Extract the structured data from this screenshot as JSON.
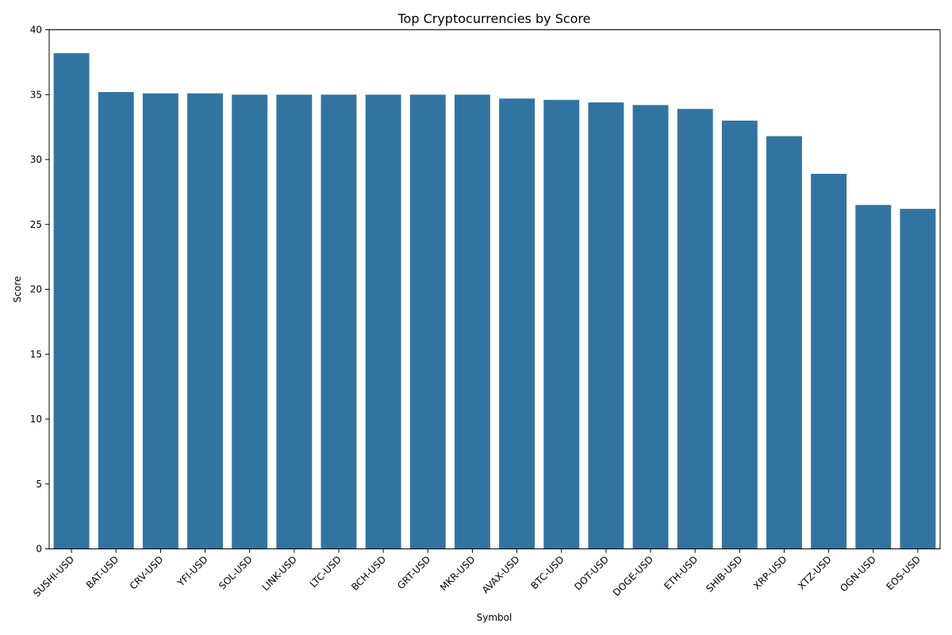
{
  "chart_data": {
    "type": "bar",
    "title": "Top Cryptocurrencies by Score",
    "xlabel": "Symbol",
    "ylabel": "Score",
    "ylim": [
      0,
      40
    ],
    "yticks": [
      0,
      5,
      10,
      15,
      20,
      25,
      30,
      35,
      40
    ],
    "grid": false,
    "legend": "none",
    "bar_color": "#3274a1",
    "categories": [
      "SUSHI-USD",
      "BAT-USD",
      "CRV-USD",
      "YFI-USD",
      "SOL-USD",
      "LINK-USD",
      "LTC-USD",
      "BCH-USD",
      "GRT-USD",
      "MKR-USD",
      "AVAX-USD",
      "BTC-USD",
      "DOT-USD",
      "DOGE-USD",
      "ETH-USD",
      "SHIB-USD",
      "XRP-USD",
      "XTZ-USD",
      "OGN-USD",
      "EOS-USD"
    ],
    "values": [
      38.2,
      35.2,
      35.1,
      35.1,
      35.0,
      35.0,
      35.0,
      35.0,
      35.0,
      35.0,
      34.7,
      34.6,
      34.4,
      34.2,
      33.9,
      33.0,
      31.8,
      28.9,
      26.5,
      26.2
    ]
  }
}
